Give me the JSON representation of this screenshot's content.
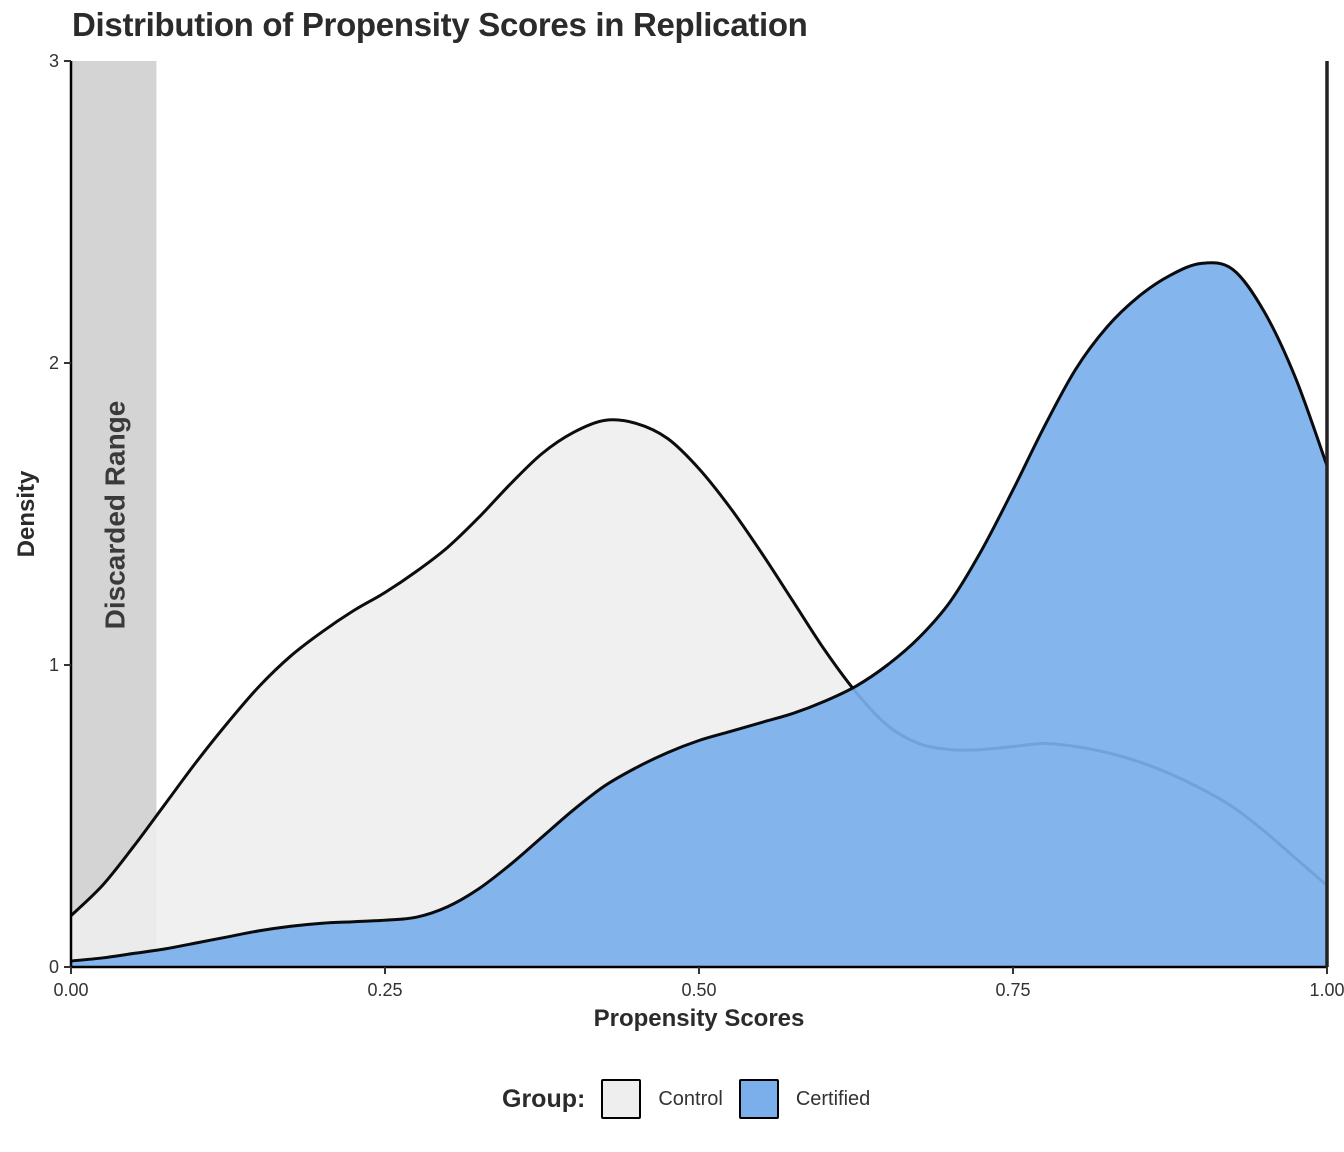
{
  "chart_data": {
    "type": "area",
    "title": "Distribution of Propensity Scores in Replication",
    "xlabel": "Propensity Scores",
    "ylabel": "Density",
    "xlim": [
      0,
      1
    ],
    "ylim": [
      0,
      3
    ],
    "xticks": [
      "0.00",
      "0.25",
      "0.50",
      "0.75",
      "1.00"
    ],
    "yticks": [
      "0",
      "1",
      "2",
      "3"
    ],
    "grid": false,
    "legend": {
      "title": "Group:",
      "placement": "bottom"
    },
    "shaded_region": {
      "label": "Discarded Range",
      "xmin": 0,
      "xmax": 0.068,
      "color": "#bdbdbd"
    },
    "reference_line": {
      "x": 1.0
    },
    "series": [
      {
        "name": "Control",
        "color": "#eeeeee",
        "x": [
          0,
          0.025,
          0.05,
          0.075,
          0.1,
          0.125,
          0.15,
          0.175,
          0.2,
          0.225,
          0.25,
          0.275,
          0.3,
          0.325,
          0.35,
          0.375,
          0.4,
          0.425,
          0.45,
          0.475,
          0.5,
          0.525,
          0.55,
          0.575,
          0.6,
          0.625,
          0.65,
          0.675,
          0.7,
          0.725,
          0.75,
          0.775,
          0.8,
          0.825,
          0.85,
          0.875,
          0.9,
          0.925,
          0.95,
          0.975,
          1.0
        ],
        "y": [
          0.17,
          0.27,
          0.4,
          0.54,
          0.68,
          0.81,
          0.93,
          1.03,
          1.11,
          1.18,
          1.24,
          1.31,
          1.39,
          1.49,
          1.6,
          1.7,
          1.77,
          1.81,
          1.8,
          1.75,
          1.65,
          1.52,
          1.37,
          1.21,
          1.05,
          0.91,
          0.8,
          0.74,
          0.72,
          0.72,
          0.73,
          0.74,
          0.73,
          0.71,
          0.68,
          0.64,
          0.59,
          0.53,
          0.45,
          0.36,
          0.27
        ]
      },
      {
        "name": "Certified",
        "color": "#7aafeb",
        "x": [
          0,
          0.025,
          0.05,
          0.075,
          0.1,
          0.125,
          0.15,
          0.175,
          0.2,
          0.225,
          0.25,
          0.275,
          0.3,
          0.325,
          0.35,
          0.375,
          0.4,
          0.425,
          0.45,
          0.475,
          0.5,
          0.525,
          0.55,
          0.575,
          0.6,
          0.625,
          0.65,
          0.675,
          0.7,
          0.725,
          0.75,
          0.775,
          0.8,
          0.825,
          0.85,
          0.875,
          0.9,
          0.925,
          0.95,
          0.975,
          1.0
        ],
        "y": [
          0.02,
          0.03,
          0.045,
          0.06,
          0.08,
          0.1,
          0.12,
          0.135,
          0.145,
          0.15,
          0.155,
          0.165,
          0.2,
          0.26,
          0.34,
          0.43,
          0.52,
          0.6,
          0.66,
          0.71,
          0.75,
          0.78,
          0.81,
          0.84,
          0.88,
          0.93,
          1.0,
          1.09,
          1.21,
          1.38,
          1.58,
          1.79,
          1.98,
          2.12,
          2.22,
          2.29,
          2.33,
          2.31,
          2.17,
          1.95,
          1.66
        ]
      }
    ]
  }
}
